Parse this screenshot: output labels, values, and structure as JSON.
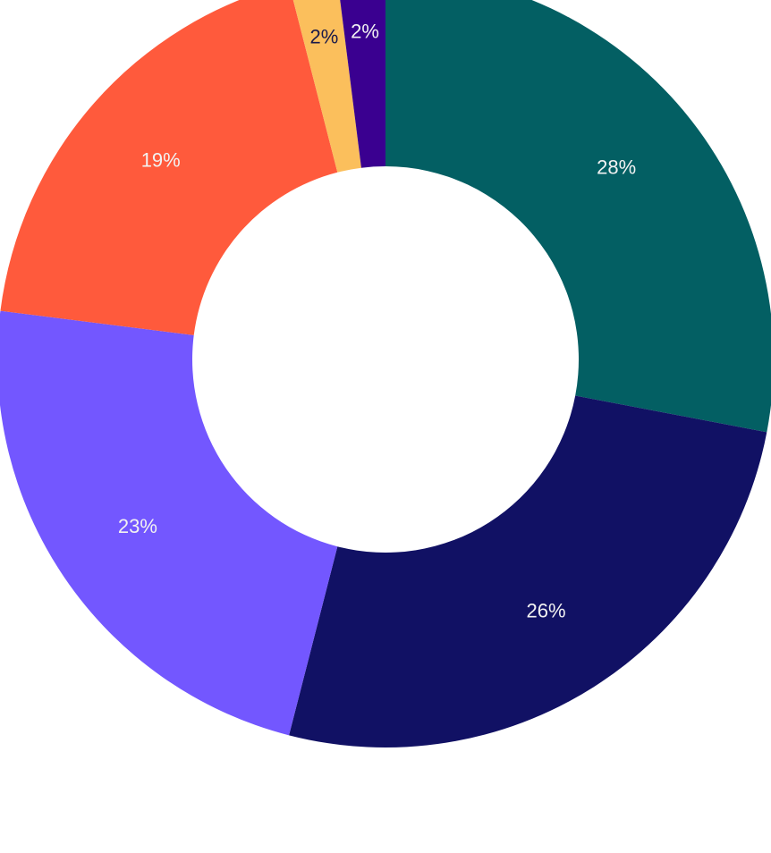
{
  "chart_data": {
    "type": "pie",
    "values": [
      28,
      26,
      23,
      19,
      2,
      2
    ],
    "value_labels": [
      "28%",
      "26%",
      "23%",
      "19%",
      "2%",
      "2%"
    ],
    "colors": [
      "#035f63",
      "#111164",
      "#7357ff",
      "#ff5a3c",
      "#fbbf5c",
      "#3a0090"
    ],
    "donut": true
  }
}
